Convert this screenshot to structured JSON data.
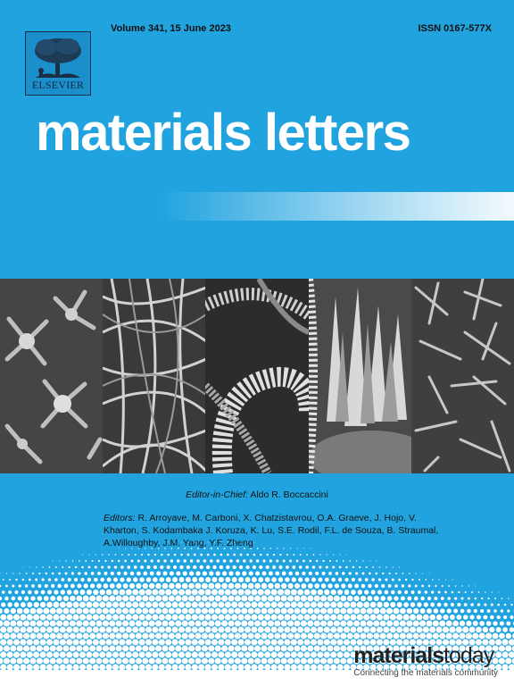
{
  "journal": {
    "volume_line": "Volume 341, 15 June 2023",
    "issn": "ISSN 0167-577X",
    "title": "materials letters"
  },
  "publisher": {
    "name": "ELSEVIER",
    "icon": "elsevier-tree-logo"
  },
  "editorial": {
    "eic_label": "Editor-in-Chief:",
    "eic_name": "Aldo R. Boccaccini",
    "editors_label": "Editors:",
    "editors": "R. Arroyave, M. Carboni, X. Chatzistavrou, O.A. Graeve, J. Hojo, V. Kharton, S. Kodambaka J. Koruza, K. Lu, S.E. Rodil, F.L. de Souza, B. Straumal, A.Willoughby, J.M. Yang, Y.F. Zheng"
  },
  "brand": {
    "logo_bold": "materials",
    "logo_thin": "today",
    "tagline": "Connecting the materials community"
  },
  "colors": {
    "background": "#21a3df",
    "title": "#ffffff",
    "text": "#111111"
  },
  "imagery": {
    "panels": [
      "sem-nanostructure-stars",
      "sem-fiber-network",
      "sem-coiled-fibers",
      "sem-crystal-plates",
      "sem-nanorods"
    ]
  }
}
